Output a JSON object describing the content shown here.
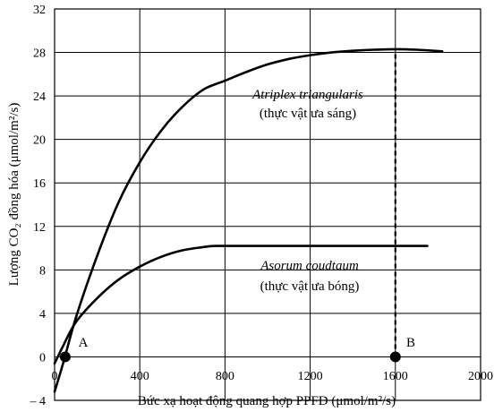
{
  "chart_data": {
    "type": "line",
    "title": "",
    "xlabel": "Bức xạ hoạt động quang hợp PPFD (μmol/m²/s)",
    "ylabel": "Lượng CO₂ đồng hóa (μmol/m²/s)",
    "xlim": [
      0,
      2000
    ],
    "ylim": [
      -4,
      32
    ],
    "xticks": [
      0,
      400,
      800,
      1200,
      1600,
      2000
    ],
    "xtick_labels": [
      "0",
      "400",
      "800",
      "1200",
      "1600",
      "2000"
    ],
    "yticks": [
      -4,
      0,
      4,
      8,
      12,
      16,
      20,
      24,
      28,
      32
    ],
    "ytick_labels": [
      "– 4",
      "0",
      "4",
      "8",
      "12",
      "16",
      "20",
      "24",
      "28",
      "32"
    ],
    "grid": true,
    "series": [
      {
        "name": "Atriplex triangularis",
        "subtitle": "(thực vật ưa sáng)",
        "x": [
          0,
          40,
          100,
          200,
          300,
          400,
          500,
          600,
          700,
          800,
          900,
          1000,
          1100,
          1200,
          1300,
          1400,
          1500,
          1600,
          1700,
          1820
        ],
        "y": [
          -3.2,
          -0.6,
          3.6,
          9.3,
          14.2,
          17.9,
          20.8,
          23.0,
          24.6,
          25.4,
          26.2,
          26.9,
          27.4,
          27.75,
          28.0,
          28.15,
          28.25,
          28.3,
          28.25,
          28.1
        ]
      },
      {
        "name": "Asorum coudtaum",
        "subtitle": "(thực vật ưa bóng)",
        "x": [
          0,
          40,
          100,
          200,
          300,
          400,
          500,
          600,
          700,
          760,
          900,
          1200,
          1500,
          1750
        ],
        "y": [
          -0.6,
          1.0,
          3.2,
          5.4,
          7.1,
          8.3,
          9.2,
          9.8,
          10.1,
          10.2,
          10.2,
          10.2,
          10.2,
          10.2
        ]
      }
    ],
    "points": [
      {
        "label": "A",
        "x": 50,
        "y": 0
      },
      {
        "label": "B",
        "x": 1600,
        "y": 0
      }
    ],
    "dashed_line": {
      "x": 1600,
      "y_from": 0,
      "y_to": 28.3
    }
  }
}
